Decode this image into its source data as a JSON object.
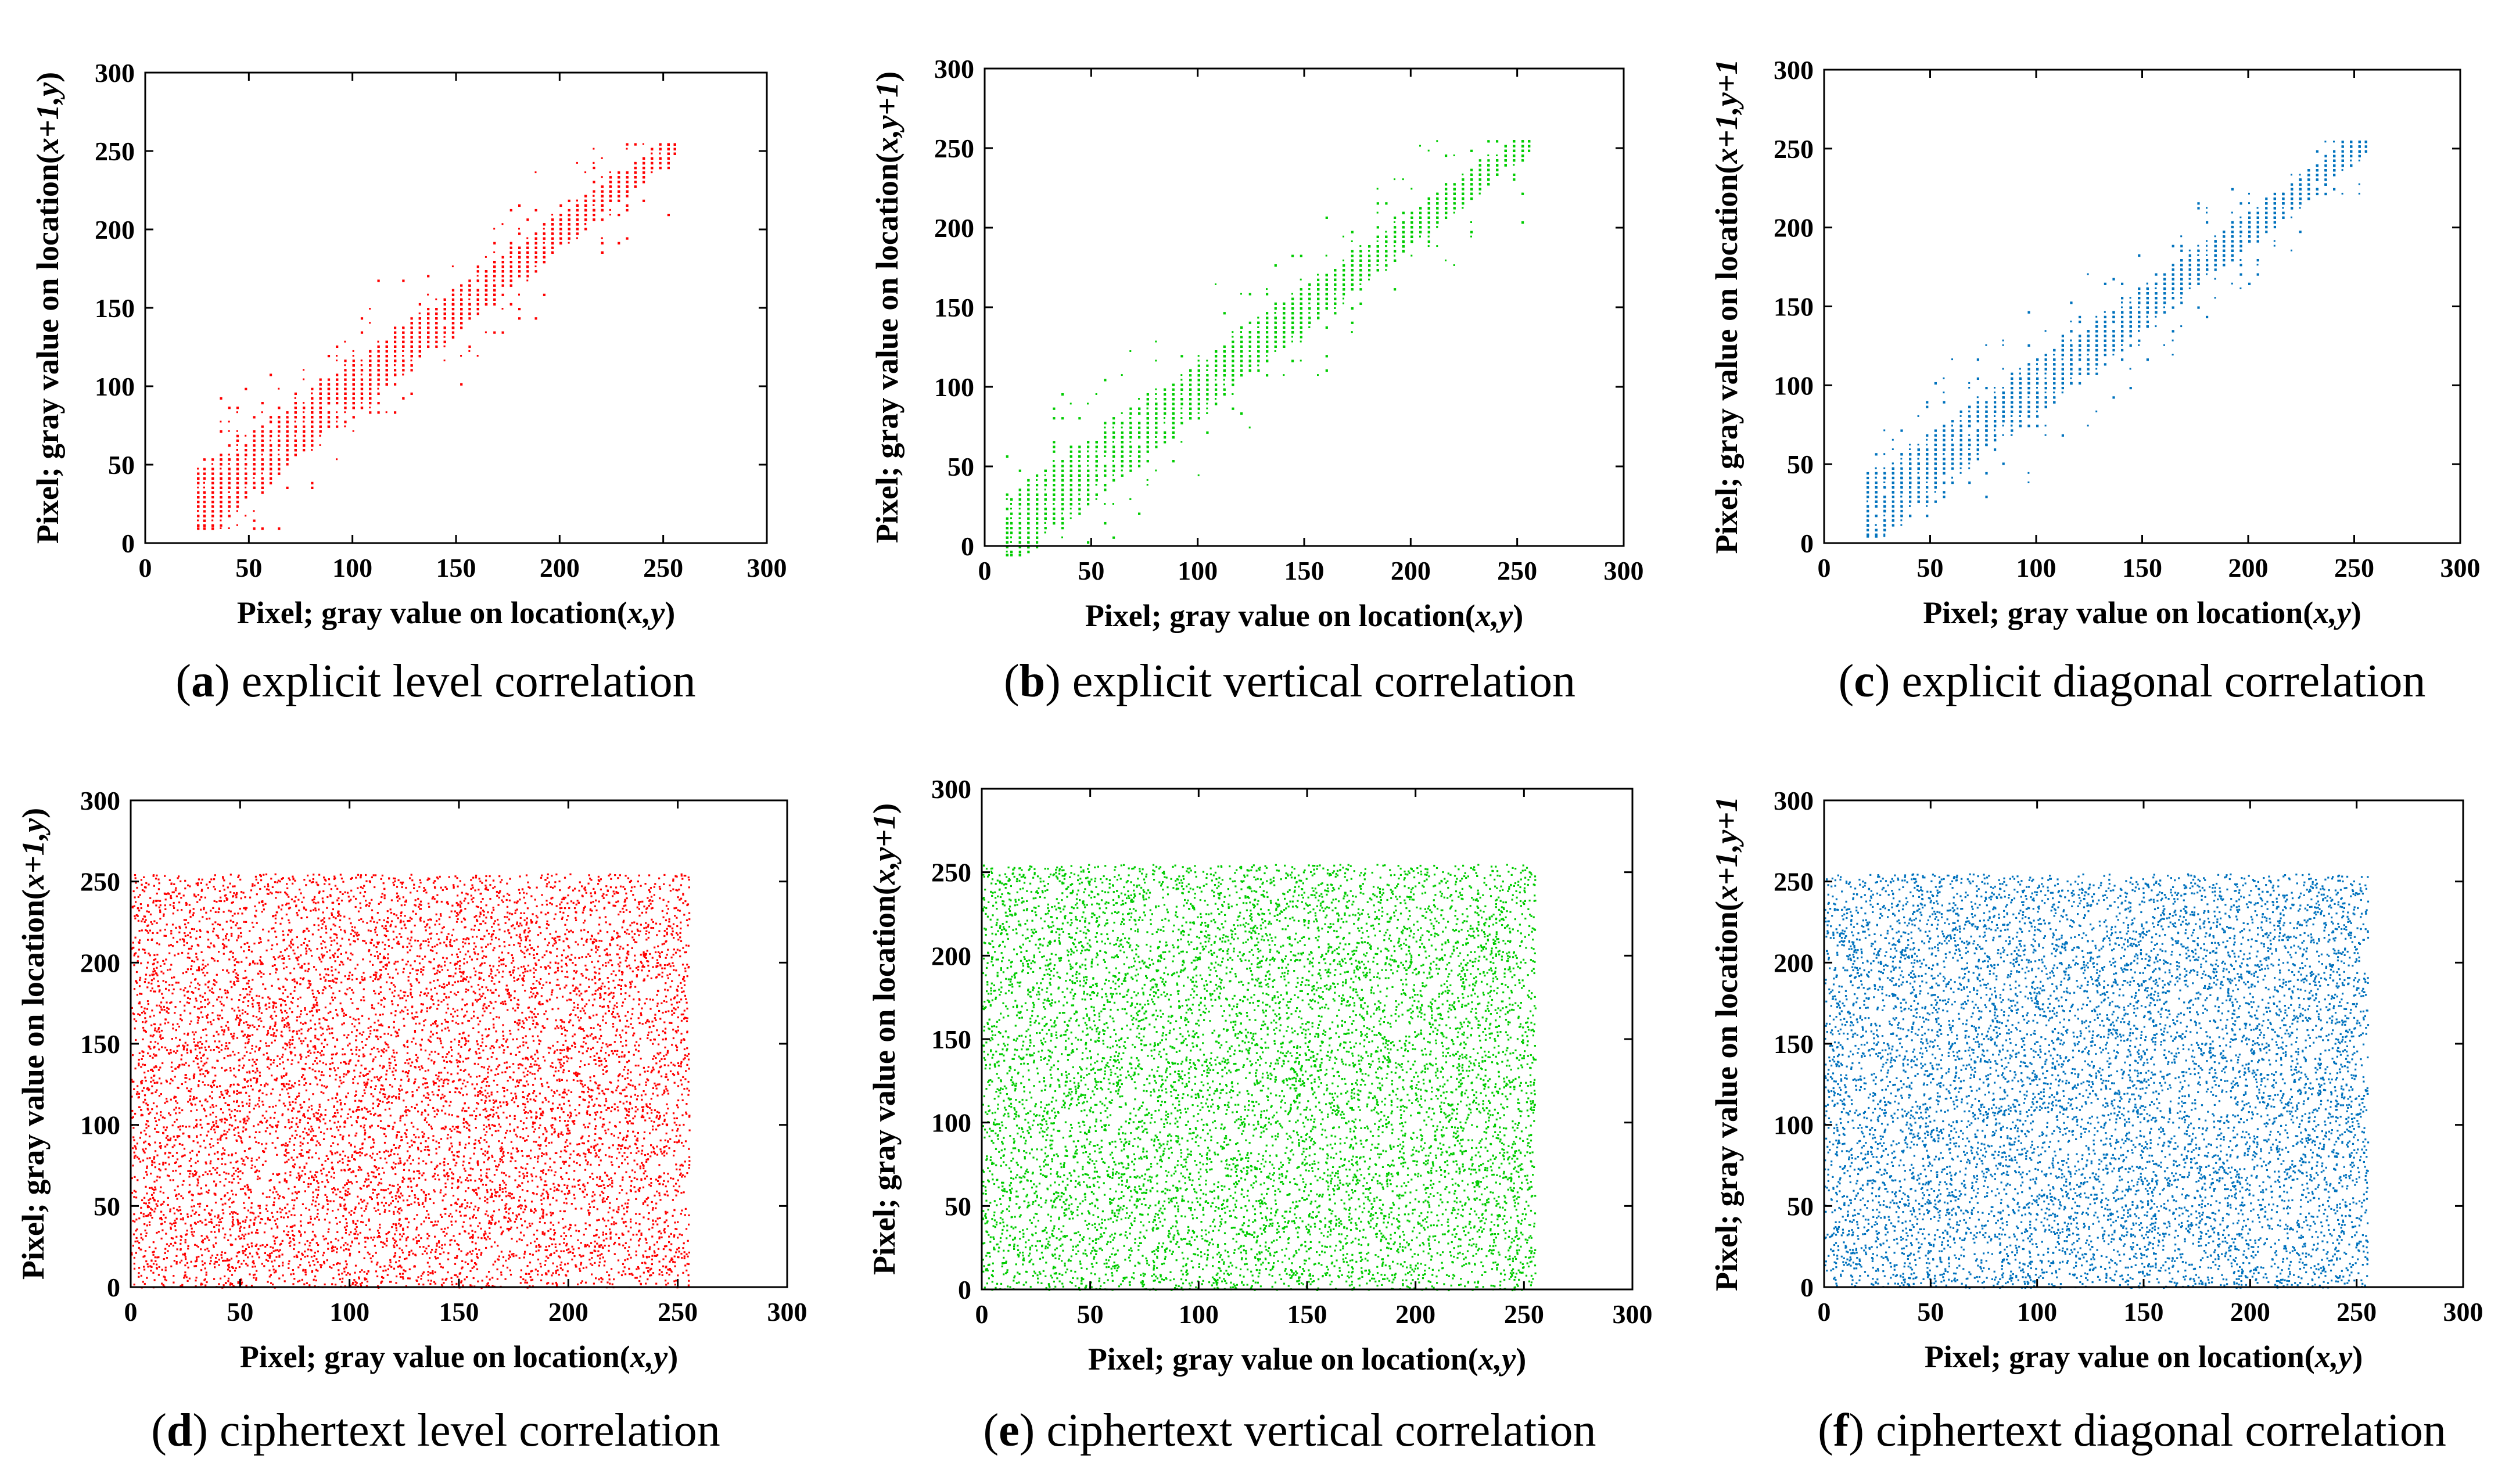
{
  "colors": {
    "red": "#ff0000",
    "green": "#00cc00",
    "blue": "#0072bd"
  },
  "chart_data": [
    {
      "id": "a",
      "type": "scatter",
      "color": "#ff0000",
      "pattern": "correlated",
      "xlabel_prefix": "Pixel; gray value on location(",
      "xlabel_vars": "x,y",
      "xlabel_suffix": ")",
      "ylabel_prefix": "Pixel; gray value on location(",
      "ylabel_vars": "x+1,y",
      "ylabel_suffix": ")",
      "xlim": [
        0,
        300
      ],
      "ylim": [
        0,
        300
      ],
      "xticks": [
        0,
        50,
        100,
        150,
        200,
        250,
        300
      ],
      "yticks": [
        0,
        50,
        100,
        150,
        200,
        250,
        300
      ],
      "data_range": [
        25,
        255
      ],
      "caption_letter": "a",
      "caption_text": "explicit level correlation"
    },
    {
      "id": "b",
      "type": "scatter",
      "color": "#00cc00",
      "pattern": "correlated",
      "xlabel_prefix": "Pixel; gray value on location(",
      "xlabel_vars": "x,y",
      "xlabel_suffix": ")",
      "ylabel_prefix": "Pixel; gray value on location(",
      "ylabel_vars": "x,y+1",
      "ylabel_suffix": ")",
      "xlim": [
        0,
        300
      ],
      "ylim": [
        0,
        300
      ],
      "xticks": [
        0,
        50,
        100,
        150,
        200,
        250,
        300
      ],
      "yticks": [
        0,
        50,
        100,
        150,
        200,
        250,
        300
      ],
      "data_range": [
        10,
        255
      ],
      "caption_letter": "b",
      "caption_text": "explicit vertical correlation"
    },
    {
      "id": "c",
      "type": "scatter",
      "color": "#0072bd",
      "pattern": "correlated",
      "xlabel_prefix": "Pixel; gray value on location(",
      "xlabel_vars": "x,y",
      "xlabel_suffix": ")",
      "ylabel_prefix": "Pixel; gray value on location(",
      "ylabel_vars": "x+1,y+1",
      "ylabel_suffix": "",
      "xlim": [
        0,
        300
      ],
      "ylim": [
        0,
        300
      ],
      "xticks": [
        0,
        50,
        100,
        150,
        200,
        250,
        300
      ],
      "yticks": [
        0,
        50,
        100,
        150,
        200,
        250,
        300
      ],
      "data_range": [
        20,
        255
      ],
      "caption_letter": "c",
      "caption_text": "explicit diagonal correlation"
    },
    {
      "id": "d",
      "type": "scatter",
      "color": "#ff0000",
      "pattern": "uniform",
      "xlabel_prefix": "Pixel; gray value on location(",
      "xlabel_vars": "x,y",
      "xlabel_suffix": ")",
      "ylabel_prefix": "Pixel; gray value on location(",
      "ylabel_vars": "x+1,y",
      "ylabel_suffix": ")",
      "xlim": [
        0,
        300
      ],
      "ylim": [
        0,
        300
      ],
      "xticks": [
        0,
        50,
        100,
        150,
        200,
        250,
        300
      ],
      "yticks": [
        0,
        50,
        100,
        150,
        200,
        250,
        300
      ],
      "data_range": [
        0,
        255
      ],
      "caption_letter": "d",
      "caption_text": "ciphertext level correlation"
    },
    {
      "id": "e",
      "type": "scatter",
      "color": "#00cc00",
      "pattern": "uniform",
      "xlabel_prefix": "Pixel; gray value on location(",
      "xlabel_vars": "x,y",
      "xlabel_suffix": ")",
      "ylabel_prefix": "Pixel; gray value on location(",
      "ylabel_vars": "x,y+1",
      "ylabel_suffix": ")",
      "xlim": [
        0,
        300
      ],
      "ylim": [
        0,
        300
      ],
      "xticks": [
        0,
        50,
        100,
        150,
        200,
        250,
        300
      ],
      "yticks": [
        0,
        50,
        100,
        150,
        200,
        250,
        300
      ],
      "data_range": [
        0,
        255
      ],
      "caption_letter": "e",
      "caption_text": "ciphertext vertical correlation"
    },
    {
      "id": "f",
      "type": "scatter",
      "color": "#0072bd",
      "pattern": "uniform",
      "xlabel_prefix": "Pixel; gray value on location(",
      "xlabel_vars": "x,y",
      "xlabel_suffix": ")",
      "ylabel_prefix": "Pixel; gray value on location(",
      "ylabel_vars": "x+1,y+1",
      "ylabel_suffix": "",
      "xlim": [
        0,
        300
      ],
      "ylim": [
        0,
        300
      ],
      "xticks": [
        0,
        50,
        100,
        150,
        200,
        250,
        300
      ],
      "yticks": [
        0,
        50,
        100,
        150,
        200,
        250,
        300
      ],
      "data_range": [
        0,
        255
      ],
      "caption_letter": "f",
      "caption_text": "ciphertext diagonal correlation"
    }
  ]
}
